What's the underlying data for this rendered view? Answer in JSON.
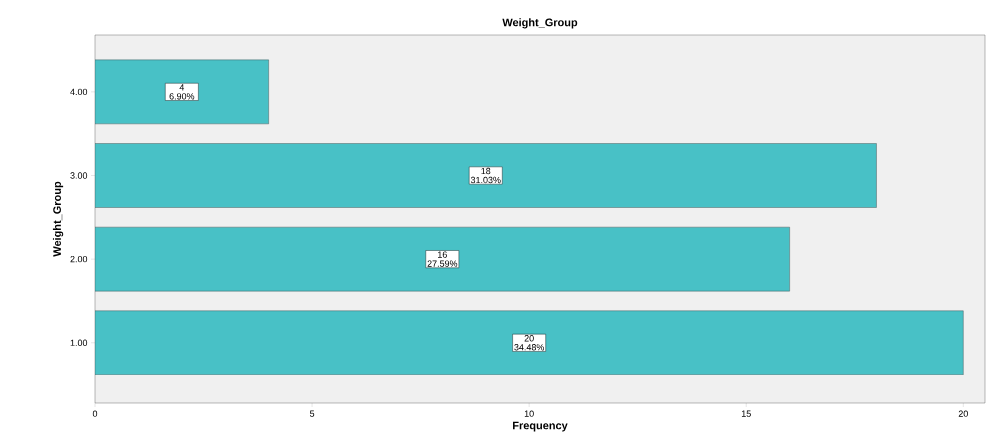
{
  "chart_data": {
    "type": "bar",
    "orientation": "horizontal",
    "title": "Weight_Group",
    "xlabel": "Frequency",
    "ylabel": "Weight_Group",
    "categories": [
      "4.00",
      "3.00",
      "2.00",
      "1.00"
    ],
    "values": [
      4,
      18,
      16,
      20
    ],
    "value_labels": [
      "4 6.90%",
      "18 31.03%",
      "16 27.59%",
      "20 34.48%"
    ],
    "color": "#48c1c6",
    "xlim": [
      0,
      20.5
    ],
    "xticks": [
      0,
      5,
      10,
      15,
      20
    ]
  }
}
